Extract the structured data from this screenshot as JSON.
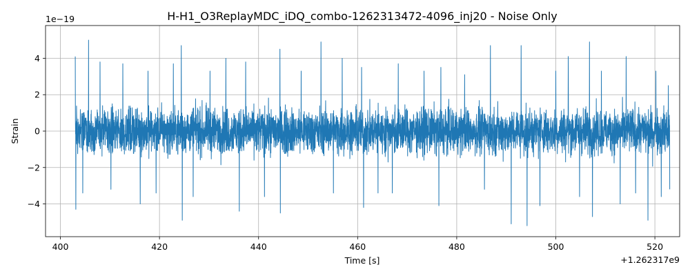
{
  "chart_data": {
    "type": "line",
    "title": "H-H1_O3ReplayMDC_iDQ_combo-1262313472-4096_inj20 - Noise Only",
    "xlabel": "Time [s]",
    "ylabel": "Strain",
    "x_offset_label": "+1.262317e9",
    "y_scale_label": "1e−19",
    "xlim": [
      397,
      525
    ],
    "ylim": [
      -5.8,
      5.8
    ],
    "x_ticks": [
      400,
      420,
      440,
      460,
      480,
      500,
      520
    ],
    "x_tick_labels": [
      "400",
      "420",
      "440",
      "460",
      "480",
      "500",
      "520"
    ],
    "y_ticks": [
      -4,
      -2,
      0,
      2,
      4
    ],
    "y_tick_labels": [
      "−4",
      "−2",
      "0",
      "2",
      "4"
    ],
    "grid": true,
    "line_color": "#1f77b4",
    "series": [
      {
        "x_range": [
          403,
          523
        ],
        "typical_range": [
          -2.0,
          2.0
        ],
        "envelope_points": [
          {
            "x": 403.0,
            "y": 4.1
          },
          {
            "x": 403.1,
            "y": -4.3
          },
          {
            "x": 405.7,
            "y": 5.0
          },
          {
            "x": 404.5,
            "y": -3.4
          },
          {
            "x": 408.0,
            "y": 3.8
          },
          {
            "x": 410.2,
            "y": -3.2
          },
          {
            "x": 412.6,
            "y": 3.7
          },
          {
            "x": 416.1,
            "y": -4.0
          },
          {
            "x": 417.7,
            "y": 3.3
          },
          {
            "x": 419.3,
            "y": -3.4
          },
          {
            "x": 422.8,
            "y": 3.7
          },
          {
            "x": 424.6,
            "y": -4.9
          },
          {
            "x": 424.4,
            "y": 4.7
          },
          {
            "x": 426.8,
            "y": -3.6
          },
          {
            "x": 430.2,
            "y": 3.3
          },
          {
            "x": 433.4,
            "y": 4.0
          },
          {
            "x": 436.1,
            "y": -4.4
          },
          {
            "x": 437.4,
            "y": 3.8
          },
          {
            "x": 441.2,
            "y": -3.6
          },
          {
            "x": 444.3,
            "y": 4.5
          },
          {
            "x": 444.4,
            "y": -4.5
          },
          {
            "x": 448.6,
            "y": 3.3
          },
          {
            "x": 452.6,
            "y": 4.9
          },
          {
            "x": 455.1,
            "y": -3.4
          },
          {
            "x": 456.9,
            "y": 4.0
          },
          {
            "x": 460.8,
            "y": 3.5
          },
          {
            "x": 461.2,
            "y": -4.2
          },
          {
            "x": 464.1,
            "y": -3.4
          },
          {
            "x": 467.0,
            "y": -3.4
          },
          {
            "x": 468.2,
            "y": 3.7
          },
          {
            "x": 473.4,
            "y": 3.3
          },
          {
            "x": 476.4,
            "y": -4.1
          },
          {
            "x": 476.8,
            "y": 3.5
          },
          {
            "x": 481.6,
            "y": 3.1
          },
          {
            "x": 485.6,
            "y": -3.2
          },
          {
            "x": 486.8,
            "y": 4.7
          },
          {
            "x": 491.0,
            "y": -5.1
          },
          {
            "x": 493.0,
            "y": 4.7
          },
          {
            "x": 494.2,
            "y": -5.2
          },
          {
            "x": 496.8,
            "y": -4.1
          },
          {
            "x": 500.0,
            "y": 3.3
          },
          {
            "x": 502.5,
            "y": 4.1
          },
          {
            "x": 504.8,
            "y": -3.6
          },
          {
            "x": 506.8,
            "y": 4.9
          },
          {
            "x": 507.4,
            "y": -4.7
          },
          {
            "x": 509.2,
            "y": 3.3
          },
          {
            "x": 513.0,
            "y": -4.0
          },
          {
            "x": 514.2,
            "y": 4.1
          },
          {
            "x": 516.1,
            "y": -3.4
          },
          {
            "x": 518.6,
            "y": -4.9
          },
          {
            "x": 520.2,
            "y": 3.3
          },
          {
            "x": 521.3,
            "y": -3.6
          },
          {
            "x": 522.7,
            "y": 2.5
          },
          {
            "x": 523.0,
            "y": -3.2
          }
        ]
      }
    ]
  }
}
